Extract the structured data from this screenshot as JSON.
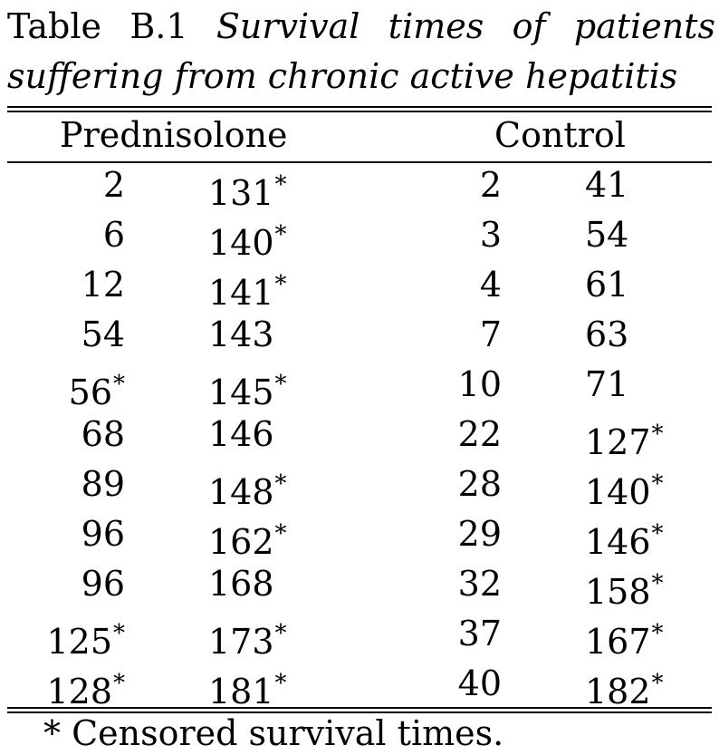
{
  "caption": {
    "label": "Table B.1",
    "title_line1": "Survival times of patients",
    "title_line2": "suffering from chronic active hepatitis"
  },
  "headers": [
    "Prednisolone",
    "Control"
  ],
  "rows": [
    [
      "2",
      "131*",
      "2",
      "41"
    ],
    [
      "6",
      "140*",
      "3",
      "54"
    ],
    [
      "12",
      "141*",
      "4",
      "61"
    ],
    [
      "54",
      "143",
      "7",
      "63"
    ],
    [
      "56*",
      "145*",
      "10",
      "71"
    ],
    [
      "68",
      "146",
      "22",
      "127*"
    ],
    [
      "89",
      "148*",
      "28",
      "140*"
    ],
    [
      "96",
      "162*",
      "29",
      "146*"
    ],
    [
      "96",
      "168",
      "32",
      "158*"
    ],
    [
      "125*",
      "173*",
      "37",
      "167*"
    ],
    [
      "128*",
      "181*",
      "40",
      "182*"
    ]
  ],
  "footnote": "* Censored survival times."
}
